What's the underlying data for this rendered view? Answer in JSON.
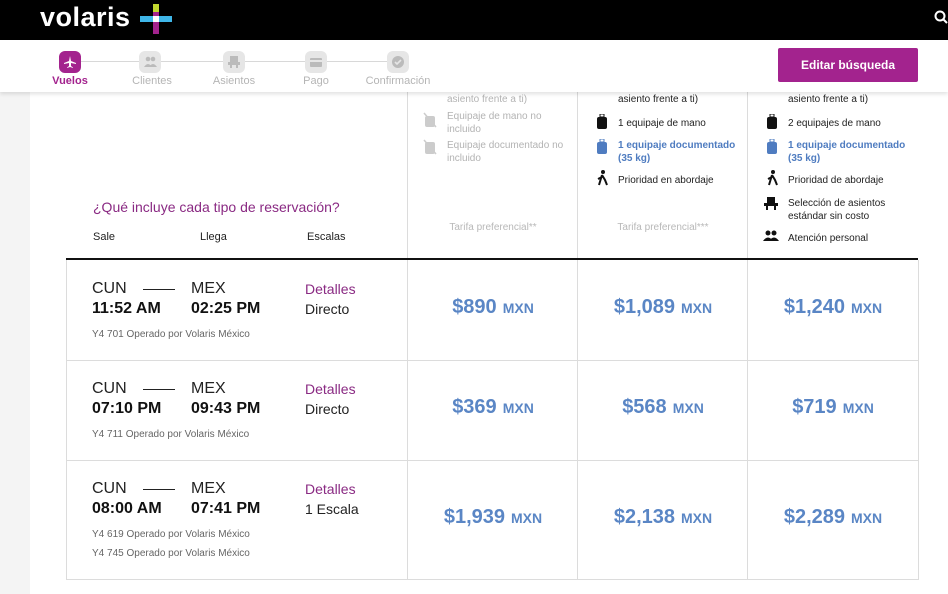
{
  "header": {
    "logo": "volaris"
  },
  "steps": [
    {
      "label": "Vuelos",
      "active": true
    },
    {
      "label": "Clientes",
      "active": false
    },
    {
      "label": "Asientos",
      "active": false
    },
    {
      "label": "Pago",
      "active": false
    },
    {
      "label": "Confirmación",
      "active": false
    }
  ],
  "edit_button": "Editar búsqueda",
  "fares": [
    {
      "features": [
        "asiento frente a ti)",
        "Equipaje de mano no incluido",
        "Equipaje documentado no incluido"
      ],
      "footer": "Tarifa preferencial**"
    },
    {
      "features": [
        "asiento frente a ti)",
        "1 equipaje de mano",
        "1 equipaje documentado (35 kg)",
        "Prioridad en abordaje"
      ],
      "footer": "Tarifa preferencial***"
    },
    {
      "features": [
        "asiento frente a ti)",
        "2 equipajes de mano",
        "1 equipaje documentado (35 kg)",
        "Prioridad de abordaje",
        "Selección de asientos estándar sin costo",
        "Atención personal"
      ]
    }
  ],
  "table": {
    "question": "¿Qué incluye cada tipo de reservación?",
    "headers": [
      "Sale",
      "Llega",
      "Escalas"
    ],
    "rows": [
      {
        "origin": "CUN",
        "departure": "11:52 AM",
        "destination": "MEX",
        "arrival": "02:25 PM",
        "details": "Detalles",
        "stops": "Directo",
        "flights": [
          "Y4 701 Operado por Volaris México"
        ],
        "prices": [
          {
            "amount": "$890",
            "currency": "MXN"
          },
          {
            "amount": "$1,089",
            "currency": "MXN"
          },
          {
            "amount": "$1,240",
            "currency": "MXN"
          }
        ]
      },
      {
        "origin": "CUN",
        "departure": "07:10 PM",
        "destination": "MEX",
        "arrival": "09:43 PM",
        "details": "Detalles",
        "stops": "Directo",
        "flights": [
          "Y4 711 Operado por Volaris México"
        ],
        "prices": [
          {
            "amount": "$369",
            "currency": "MXN"
          },
          {
            "amount": "$568",
            "currency": "MXN"
          },
          {
            "amount": "$719",
            "currency": "MXN"
          }
        ]
      },
      {
        "origin": "CUN",
        "departure": "08:00 AM",
        "destination": "MEX",
        "arrival": "07:41 PM",
        "details": "Detalles",
        "stops": "1 Escala",
        "flights": [
          "Y4 619 Operado por Volaris México",
          "Y4 745 Operado por Volaris México"
        ],
        "prices": [
          {
            "amount": "$1,939",
            "currency": "MXN"
          },
          {
            "amount": "$2,138",
            "currency": "MXN"
          },
          {
            "amount": "$2,289",
            "currency": "MXN"
          }
        ]
      }
    ]
  }
}
